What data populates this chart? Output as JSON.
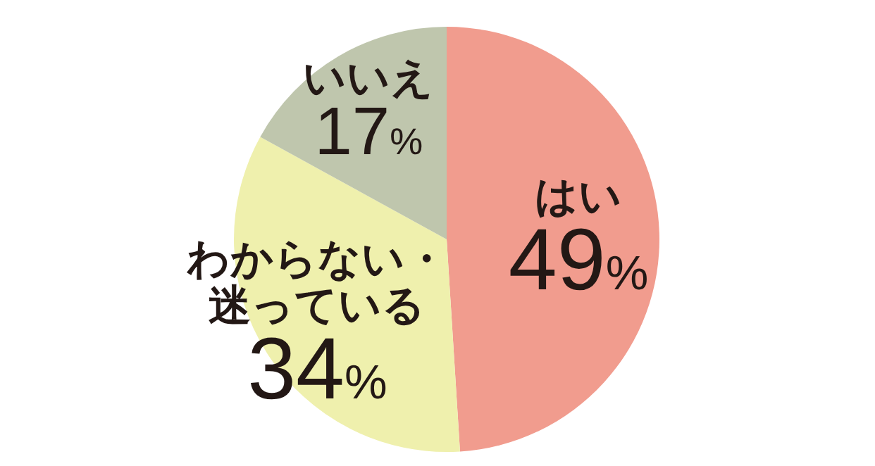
{
  "chart_data": {
    "type": "pie",
    "categories": [
      "はい",
      "わからない・迷っている",
      "いいえ"
    ],
    "values": [
      49,
      34,
      17
    ],
    "colors": [
      "#f19c8e",
      "#eff0ad",
      "#bfc6ad"
    ],
    "value_labels": [
      "49%",
      "34%",
      "17%"
    ],
    "legend": false
  }
}
